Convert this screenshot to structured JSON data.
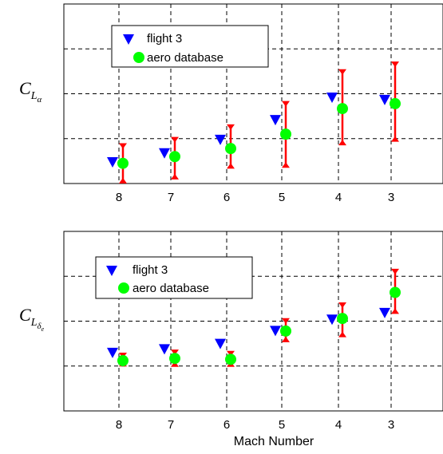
{
  "chart_data": [
    {
      "type": "scatter",
      "ylabel": {
        "base": "C",
        "sub": "L",
        "subsub": "α"
      },
      "xlabel": "",
      "categories": [
        "8",
        "7",
        "6",
        "5",
        "4",
        "3"
      ],
      "grid": true,
      "legend": {
        "placement": "top-left",
        "entries": [
          "flight 3",
          "aero database"
        ]
      },
      "series": [
        {
          "name": "flight 3",
          "marker": "triangle-down",
          "color": "#0000ff",
          "values": [
            0.48,
            0.68,
            0.98,
            1.42,
            1.92,
            1.87
          ]
        },
        {
          "name": "aero database",
          "marker": "circle",
          "color": "#00ff00",
          "values": [
            0.45,
            0.6,
            0.78,
            1.1,
            1.67,
            1.78
          ]
        }
      ],
      "error_bars": {
        "color": "#ff0000",
        "of_series": "aero database",
        "low": [
          0.02,
          0.11,
          0.35,
          0.37,
          0.87,
          0.95
        ],
        "high": [
          0.88,
          1.02,
          1.3,
          1.82,
          2.53,
          2.7
        ]
      },
      "ylim": [
        0,
        4
      ]
    },
    {
      "type": "scatter",
      "ylabel": {
        "base": "C",
        "sub": "L",
        "subsub": "δ",
        "subsubsub": "e"
      },
      "xlabel": "Mach Number",
      "categories": [
        "8",
        "7",
        "6",
        "5",
        "4",
        "3"
      ],
      "grid": true,
      "legend": {
        "placement": "top-left",
        "entries": [
          "flight 3",
          "aero database"
        ]
      },
      "series": [
        {
          "name": "flight 3",
          "marker": "triangle-down",
          "color": "#0000ff",
          "values": [
            0.3,
            0.38,
            0.5,
            0.79,
            1.04,
            1.19
          ]
        },
        {
          "name": "aero database",
          "marker": "circle",
          "color": "#00ff00",
          "values": [
            0.12,
            0.17,
            0.15,
            0.78,
            1.06,
            1.64
          ]
        }
      ],
      "error_bars": {
        "color": "#ff0000",
        "of_series": "aero database",
        "low": [
          0.01,
          0.0,
          0.0,
          0.55,
          0.66,
          1.18
        ],
        "high": [
          0.28,
          0.35,
          0.32,
          1.05,
          1.4,
          2.15
        ]
      },
      "ylim": [
        -1,
        3
      ]
    }
  ]
}
